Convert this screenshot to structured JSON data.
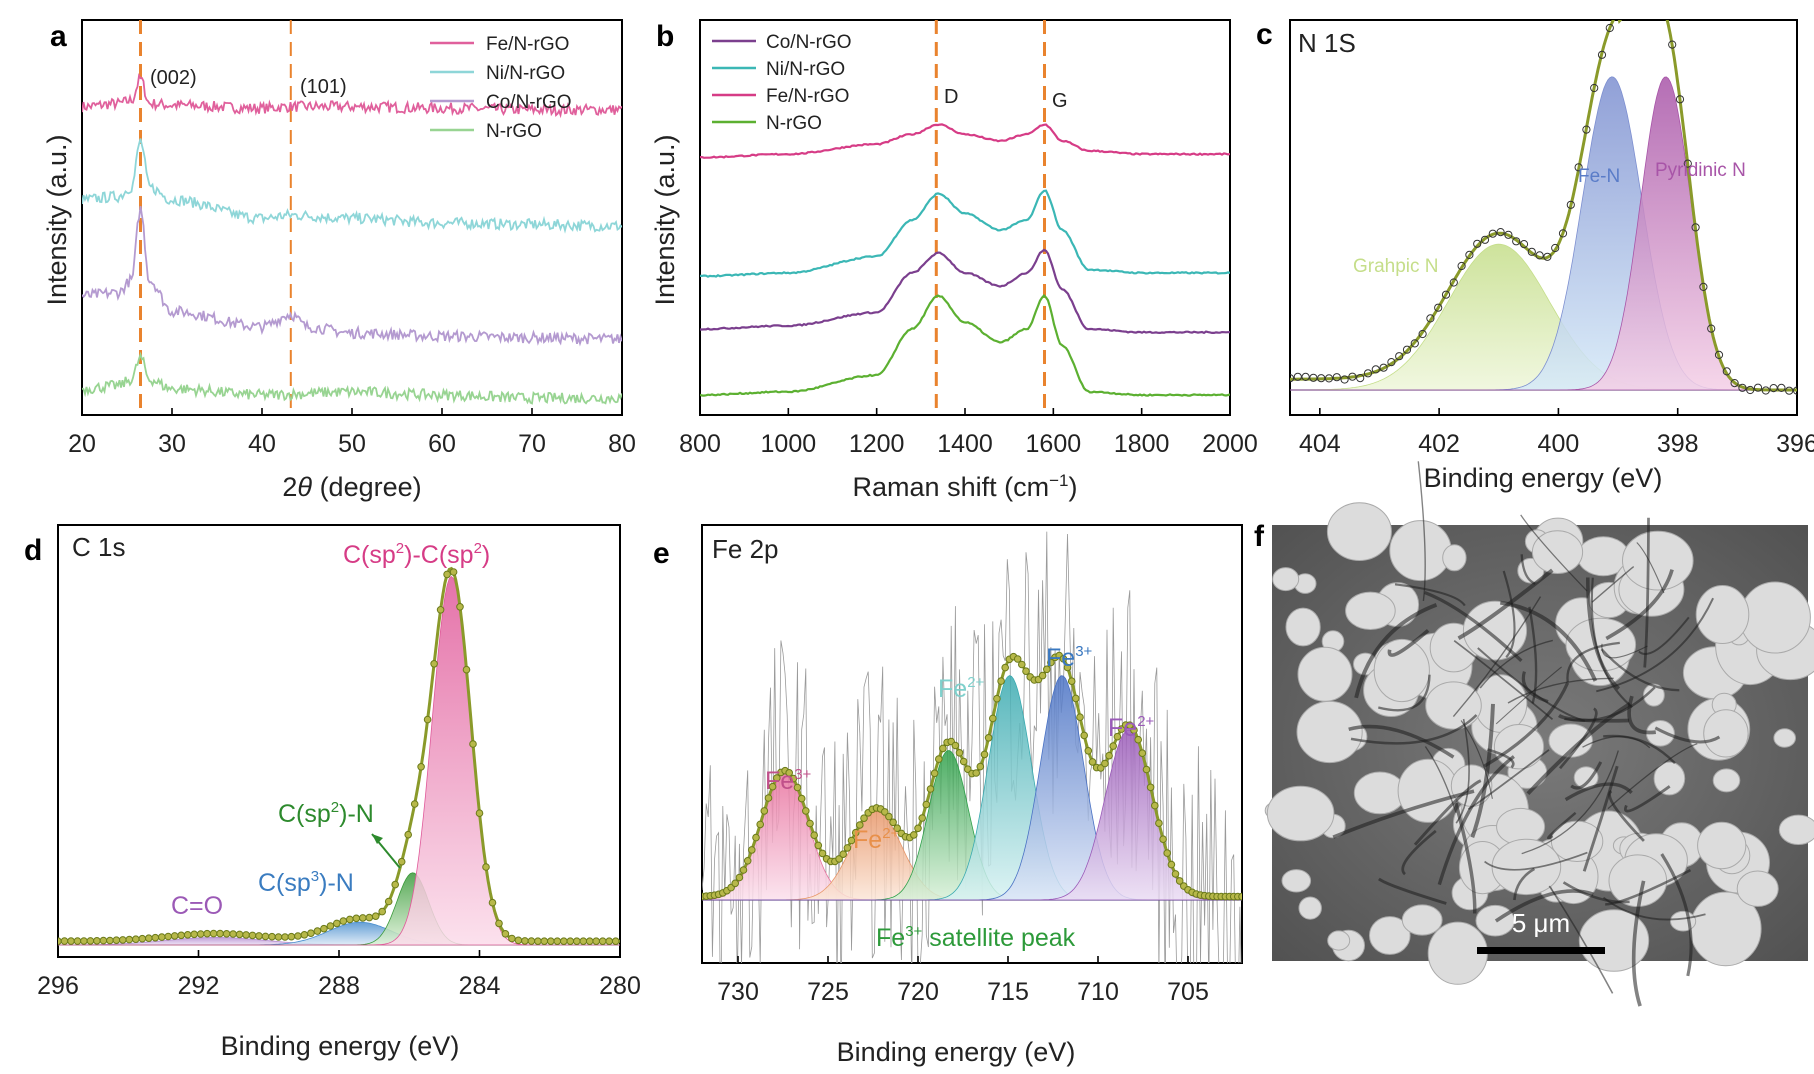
{
  "panel_letters": {
    "a": "a",
    "b": "b",
    "c": "c",
    "d": "d",
    "e": "e",
    "f": "f"
  },
  "colors": {
    "fe_pink": "#e0609c",
    "ni_cyan": "#8ed6d8",
    "co_purple": "#b49ad0",
    "n_green": "#98d492",
    "b_co": "#7b3f8e",
    "b_ni": "#3bb7b5",
    "b_fe": "#d63c86",
    "b_n": "#5cb031",
    "dash": "#e9832e",
    "olive": "#8a9a2a"
  },
  "chart_data": [
    {
      "panel": "a",
      "type": "line",
      "xlabel_prefix": "2",
      "xlabel_theta": "θ",
      "xlabel_suffix": " (degree)",
      "ylabel": "Intensity (a.u.)",
      "xlim": [
        20,
        80
      ],
      "xticks": [
        "20",
        "30",
        "40",
        "50",
        "60",
        "70",
        "80"
      ],
      "annotations": [
        "(002)",
        "(101)"
      ],
      "reference_lines": [
        26.5,
        43.2
      ],
      "legend": [
        "Fe/N-rGO",
        "Ni/N-rGO",
        "Co/N-rGO",
        "N-rGO"
      ],
      "series": [
        {
          "name": "Fe/N-rGO",
          "x": [
            20,
            24,
            25.5,
            26.5,
            27.5,
            30,
            40,
            43.2,
            50,
            60,
            70,
            80
          ],
          "y": [
            0.93,
            0.94,
            0.95,
            1.02,
            0.94,
            0.935,
            0.925,
            0.93,
            0.93,
            0.925,
            0.92,
            0.92
          ]
        },
        {
          "name": "Ni/N-rGO",
          "x": [
            20,
            24,
            25.5,
            26.5,
            27.5,
            30,
            40,
            43.2,
            50,
            60,
            70,
            80
          ],
          "y": [
            0.63,
            0.64,
            0.67,
            0.82,
            0.67,
            0.63,
            0.57,
            0.58,
            0.57,
            0.555,
            0.55,
            0.545
          ]
        },
        {
          "name": "Co/N-rGO",
          "x": [
            20,
            24,
            25.5,
            26.5,
            27.5,
            30,
            40,
            43.2,
            45,
            50,
            60,
            70,
            80
          ],
          "y": [
            0.32,
            0.33,
            0.37,
            0.6,
            0.37,
            0.27,
            0.22,
            0.26,
            0.22,
            0.2,
            0.19,
            0.185,
            0.18
          ]
        },
        {
          "name": "N-rGO",
          "x": [
            20,
            24,
            25.5,
            26.5,
            27.5,
            30,
            40,
            50,
            60,
            70,
            80
          ],
          "y": [
            0.02,
            0.03,
            0.05,
            0.12,
            0.05,
            0.02,
            0.0,
            0.01,
            0.0,
            -0.01,
            -0.01
          ]
        }
      ]
    },
    {
      "panel": "b",
      "type": "line",
      "xlabel": "Raman shift (cm",
      "xlabel_sup": "−1",
      "xlabel_end": ")",
      "ylabel": "Intensity (a.u.)",
      "xlim": [
        800,
        2000
      ],
      "xticks": [
        "800",
        "1000",
        "1200",
        "1400",
        "1600",
        "1800",
        "2000"
      ],
      "annotations": [
        "D",
        "G"
      ],
      "reference_lines": [
        1335,
        1580
      ],
      "legend": [
        "Co/N-rGO",
        "Ni/N-rGO",
        "Fe/N-rGO",
        "N-rGO"
      ],
      "series": [
        {
          "name": "Fe/N-rGO",
          "x": [
            800,
            1000,
            1200,
            1280,
            1340,
            1400,
            1480,
            1540,
            1580,
            1620,
            1680,
            1800,
            2000
          ],
          "y": [
            0.72,
            0.73,
            0.76,
            0.79,
            0.82,
            0.79,
            0.77,
            0.79,
            0.82,
            0.77,
            0.74,
            0.73,
            0.73
          ]
        },
        {
          "name": "Ni/N-rGO",
          "x": [
            800,
            1000,
            1200,
            1280,
            1340,
            1400,
            1480,
            1540,
            1580,
            1620,
            1680,
            1800,
            2000
          ],
          "y": [
            0.36,
            0.37,
            0.42,
            0.53,
            0.61,
            0.55,
            0.5,
            0.53,
            0.62,
            0.5,
            0.38,
            0.37,
            0.37
          ]
        },
        {
          "name": "Co/N-rGO",
          "x": [
            800,
            1000,
            1200,
            1280,
            1340,
            1400,
            1480,
            1540,
            1580,
            1620,
            1680,
            1800,
            2000
          ],
          "y": [
            0.2,
            0.21,
            0.25,
            0.37,
            0.43,
            0.37,
            0.33,
            0.37,
            0.44,
            0.32,
            0.2,
            0.19,
            0.19
          ]
        },
        {
          "name": "N-rGO",
          "x": [
            800,
            1000,
            1200,
            1280,
            1340,
            1400,
            1480,
            1540,
            1580,
            1620,
            1680,
            1800,
            2000
          ],
          "y": [
            0.0,
            0.01,
            0.06,
            0.2,
            0.3,
            0.22,
            0.16,
            0.2,
            0.3,
            0.15,
            0.01,
            0.0,
            0.0
          ]
        }
      ]
    },
    {
      "panel": "c",
      "type": "area",
      "title": "N 1S",
      "xlabel": "Binding energy (eV)",
      "xlim": [
        404.5,
        396
      ],
      "xticks": [
        "404",
        "402",
        "400",
        "398",
        "396"
      ],
      "tick_values": [
        404,
        402,
        400,
        398,
        396
      ],
      "components": [
        {
          "name": "Grahpic N",
          "center": 401.0,
          "height": 0.27,
          "sigma": 0.85,
          "color": "#c5de8a"
        },
        {
          "name": "Fe-N",
          "center": 399.1,
          "height": 0.58,
          "sigma": 0.5,
          "color": "#7d8fd0"
        },
        {
          "name": "Pyridinic N",
          "center": 398.2,
          "height": 0.58,
          "sigma": 0.42,
          "color": "#a855a8"
        }
      ],
      "envelope_color": "#8a9a2a"
    },
    {
      "panel": "d",
      "type": "area",
      "title": "C 1s",
      "xlabel": "Binding energy (eV)",
      "xlim": [
        296,
        280
      ],
      "xticks": [
        "296",
        "292",
        "288",
        "284",
        "280"
      ],
      "tick_values": [
        296,
        292,
        288,
        284,
        280
      ],
      "components": [
        {
          "name": "C=O",
          "center": 291.5,
          "height": 0.02,
          "sigma": 1.4,
          "color": "#b48cd0"
        },
        {
          "name": "C(sp3)-N",
          "center": 287.4,
          "height": 0.06,
          "sigma": 0.9,
          "color": "#4a8fce"
        },
        {
          "name": "C(sp2)-N",
          "center": 285.9,
          "height": 0.19,
          "sigma": 0.45,
          "color": "#3a9a3a"
        },
        {
          "name": "C(sp2)-C(sp2)",
          "center": 284.8,
          "height": 0.97,
          "sigma": 0.55,
          "color": "#e05a9a"
        }
      ],
      "labels": {
        "c_o": "C=O",
        "sp3_main": "C(sp",
        "sp3_sup": "3",
        "sp3_end": ")-N",
        "sp2n_main": "C(sp",
        "sp2n_sup": "2",
        "sp2n_end": ")-N",
        "sp2c_a": "C(sp",
        "sp2c_sup1": "2",
        "sp2c_b": ")-C(sp",
        "sp2c_sup2": "2",
        "sp2c_c": ")"
      },
      "envelope_color": "#8a9a2a"
    },
    {
      "panel": "e",
      "type": "area",
      "title": "Fe 2p",
      "xlabel": "Binding energy (eV)",
      "xlim": [
        732,
        702
      ],
      "xticks": [
        "730",
        "725",
        "720",
        "715",
        "710",
        "705"
      ],
      "tick_values": [
        730,
        725,
        720,
        715,
        710,
        705
      ],
      "components": [
        {
          "name": "Fe3+",
          "center": 727.4,
          "height": 0.37,
          "sigma": 1.3,
          "color": "#e8739f"
        },
        {
          "name": "Fe2+",
          "center": 722.3,
          "height": 0.26,
          "sigma": 1.4,
          "color": "#e8976a"
        },
        {
          "name": "Fe3+ satellite peak",
          "center": 718.3,
          "height": 0.44,
          "sigma": 1.1,
          "color": "#2fa04a"
        },
        {
          "name": "Fe2+",
          "center": 714.9,
          "height": 0.66,
          "sigma": 1.2,
          "color": "#3aaab0"
        },
        {
          "name": "Fe3+",
          "center": 712.0,
          "height": 0.66,
          "sigma": 1.2,
          "color": "#4a72c4"
        },
        {
          "name": "Fe2+",
          "center": 708.3,
          "height": 0.5,
          "sigma": 1.3,
          "color": "#9a5ab8"
        }
      ],
      "labels": {
        "fe_base": "Fe",
        "sup3": "3+",
        "sup2": "2+",
        "satellite_end": " satellite peak"
      },
      "envelope_color": "#8a9a2a"
    }
  ],
  "panel_f": {
    "scale_bar_label": "5 μm"
  }
}
